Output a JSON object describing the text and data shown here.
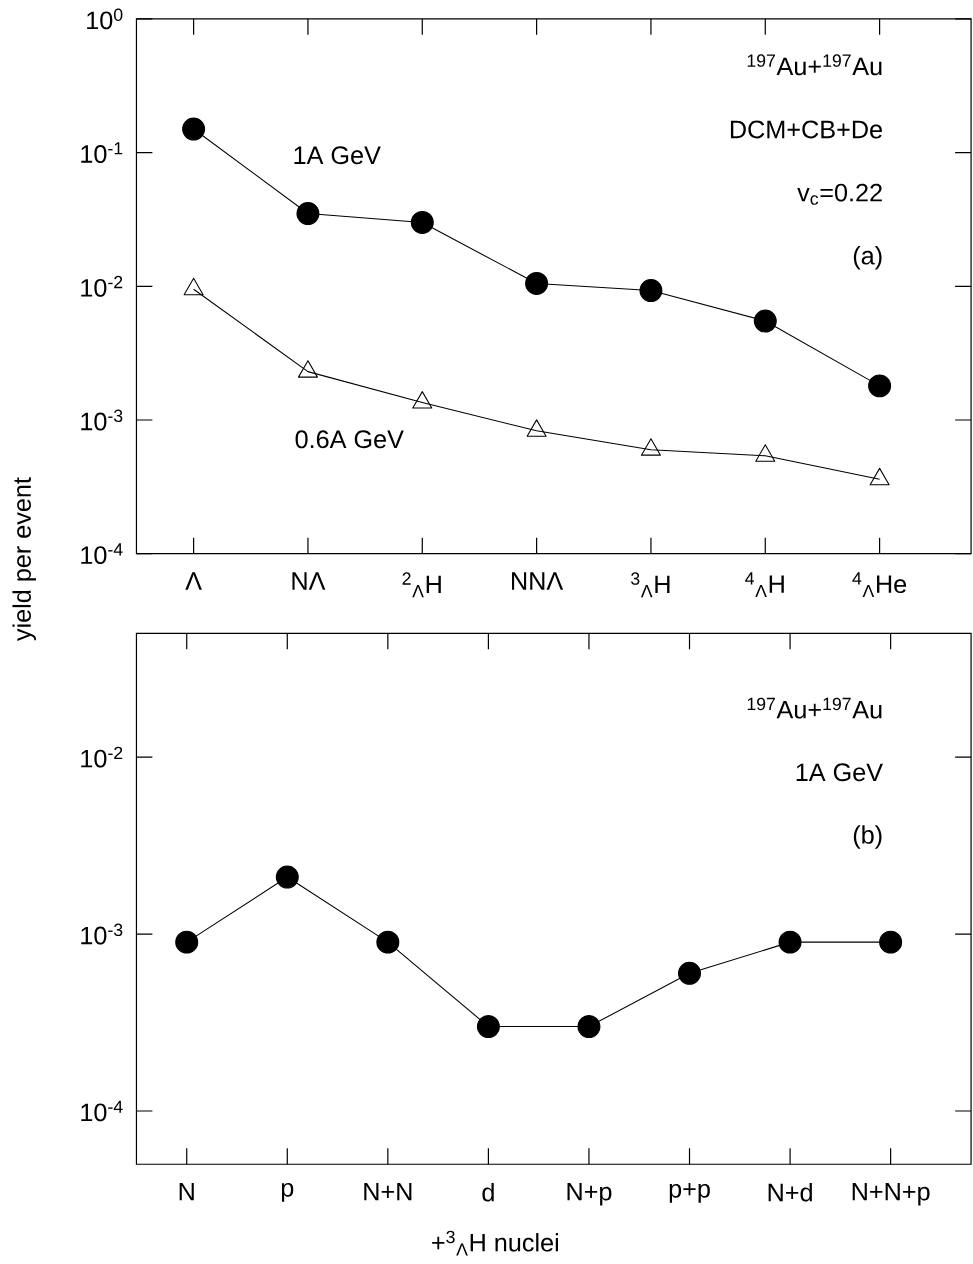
{
  "chart_data": [
    {
      "type": "line",
      "ylabel": "yield per event",
      "log": "y",
      "legend": false,
      "grid": false,
      "categories": [
        "Λ",
        "NΛ",
        "$^{2}$$_{Λ}$H",
        "NNΛ",
        "$^{3}$$_{Λ}$H",
        "$^{4}$$_{Λ}$H",
        "$^{4}$$_{Λ}$He"
      ],
      "ylim": [
        0.0001,
        1
      ],
      "yticks": [
        {
          "value": 0.0001,
          "label": "10$^{-4}$"
        },
        {
          "value": 0.001,
          "label": "10$^{-3}$"
        },
        {
          "value": 0.01,
          "label": "10$^{-2}$"
        },
        {
          "value": 0.1,
          "label": "10$^{-1}$"
        },
        {
          "value": 1,
          "label": "10$^{0}$"
        }
      ],
      "tick_labels": "xy",
      "series": [
        {
          "name": "1A GeV",
          "color": "#000000",
          "marker": "circle",
          "values": [
            0.15,
            0.035,
            0.03,
            0.0105,
            0.0093,
            0.0055,
            0.0018
          ]
        },
        {
          "name": "0.6A GeV",
          "color": "#000000",
          "marker": "triangle",
          "values": [
            0.0095,
            0.0023,
            0.00135,
            0.00083,
            0.0006,
            0.00054,
            0.00036
          ]
        }
      ],
      "annotations": [
        "$^{197}$Au+$^{197}$Au",
        "DCM+CB+De",
        "v$_{c}$=0.22",
        "(a)"
      ]
    },
    {
      "type": "line",
      "xlabel": "+$^{3}$$_{Λ}$H nuclei",
      "log": "y",
      "legend": false,
      "grid": false,
      "categories": [
        "N",
        "p",
        "N+N",
        "d",
        "N+p",
        "p+p",
        "N+d",
        "N+N+p"
      ],
      "ylim": [
        5e-05,
        0.05
      ],
      "yticks": [
        {
          "value": 0.0001,
          "label": "10$^{-4}$"
        },
        {
          "value": 0.001,
          "label": "10$^{-3}$"
        },
        {
          "value": 0.01,
          "label": "10$^{-2}$"
        }
      ],
      "series": [
        {
          "color": "#000000",
          "marker": "circle",
          "values": [
            0.0009,
            0.0021,
            0.0009,
            0.0003,
            0.0003,
            0.0006,
            0.0009,
            0.0009
          ]
        }
      ],
      "annotations": [
        "$^{197}$Au+$^{197}$Au",
        "1A GeV",
        "(b)"
      ]
    }
  ]
}
